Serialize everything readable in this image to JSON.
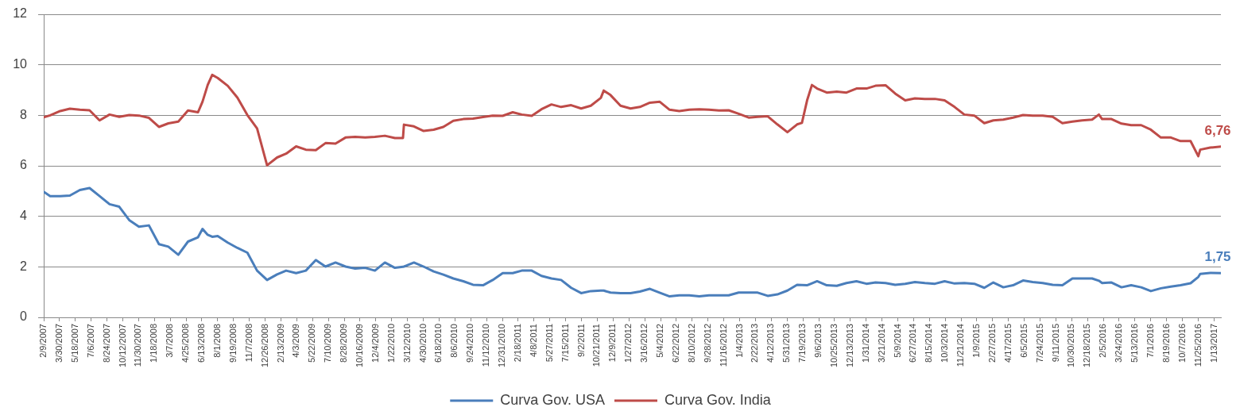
{
  "chart_data": {
    "type": "line",
    "x": [
      "2007-02-09",
      "2007-03-01",
      "2007-04-01",
      "2007-05-01",
      "2007-06-01",
      "2007-07-01",
      "2007-08-01",
      "2007-09-01",
      "2007-10-01",
      "2007-11-01",
      "2007-12-01",
      "2008-01-01",
      "2008-02-01",
      "2008-03-01",
      "2008-04-01",
      "2008-05-01",
      "2008-06-01",
      "2008-06-15",
      "2008-07-01",
      "2008-07-15",
      "2008-08-01",
      "2008-09-01",
      "2008-10-01",
      "2008-11-01",
      "2008-12-01",
      "2009-01-01",
      "2009-02-01",
      "2009-03-01",
      "2009-04-01",
      "2009-05-01",
      "2009-06-01",
      "2009-07-01",
      "2009-08-01",
      "2009-09-01",
      "2009-10-01",
      "2009-11-01",
      "2009-12-01",
      "2010-01-01",
      "2010-02-01",
      "2010-02-26",
      "2010-03-01",
      "2010-04-01",
      "2010-05-01",
      "2010-06-01",
      "2010-07-01",
      "2010-08-01",
      "2010-09-01",
      "2010-10-01",
      "2010-11-01",
      "2010-12-01",
      "2011-01-01",
      "2011-02-01",
      "2011-03-01",
      "2011-04-01",
      "2011-05-01",
      "2011-06-01",
      "2011-07-01",
      "2011-08-01",
      "2011-09-01",
      "2011-10-01",
      "2011-11-01",
      "2011-11-10",
      "2011-12-01",
      "2012-01-01",
      "2012-02-01",
      "2012-03-01",
      "2012-04-01",
      "2012-05-01",
      "2012-06-01",
      "2012-07-01",
      "2012-08-01",
      "2012-09-01",
      "2012-10-01",
      "2012-11-01",
      "2012-12-01",
      "2013-01-01",
      "2013-02-01",
      "2013-03-01",
      "2013-04-01",
      "2013-05-01",
      "2013-06-01",
      "2013-07-01",
      "2013-07-16",
      "2013-08-01",
      "2013-08-16",
      "2013-09-01",
      "2013-10-01",
      "2013-11-01",
      "2013-12-01",
      "2014-01-01",
      "2014-02-01",
      "2014-03-01",
      "2014-04-01",
      "2014-05-01",
      "2014-06-01",
      "2014-07-01",
      "2014-08-01",
      "2014-09-01",
      "2014-10-01",
      "2014-11-01",
      "2014-12-01",
      "2015-01-01",
      "2015-02-01",
      "2015-03-01",
      "2015-04-01",
      "2015-05-01",
      "2015-06-01",
      "2015-07-01",
      "2015-08-01",
      "2015-09-01",
      "2015-10-01",
      "2015-11-01",
      "2015-12-01",
      "2016-01-01",
      "2016-01-22",
      "2016-02-01",
      "2016-03-01",
      "2016-04-01",
      "2016-05-01",
      "2016-06-01",
      "2016-07-01",
      "2016-08-01",
      "2016-09-01",
      "2016-10-01",
      "2016-11-01",
      "2016-11-25",
      "2016-12-01",
      "2017-01-01",
      "2017-02-03"
    ],
    "series": [
      {
        "name": "Curva Gov. USA",
        "color": "#4a7ebb",
        "values": [
          4.97,
          4.8,
          4.8,
          4.82,
          5.04,
          5.12,
          4.8,
          4.48,
          4.38,
          3.85,
          3.59,
          3.64,
          2.9,
          2.8,
          2.48,
          3.0,
          3.17,
          3.5,
          3.27,
          3.19,
          3.22,
          2.96,
          2.75,
          2.56,
          1.85,
          1.48,
          1.7,
          1.85,
          1.75,
          1.85,
          2.27,
          2.01,
          2.17,
          2.01,
          1.93,
          1.96,
          1.85,
          2.17,
          1.96,
          2.0,
          2.01,
          2.17,
          2.01,
          1.82,
          1.69,
          1.54,
          1.43,
          1.29,
          1.27,
          1.48,
          1.75,
          1.75,
          1.85,
          1.85,
          1.64,
          1.54,
          1.48,
          1.17,
          0.96,
          1.04,
          1.06,
          1.06,
          0.98,
          0.96,
          0.96,
          1.02,
          1.13,
          0.98,
          0.83,
          0.87,
          0.87,
          0.83,
          0.87,
          0.87,
          0.87,
          0.98,
          0.98,
          0.98,
          0.85,
          0.91,
          1.06,
          1.29,
          1.28,
          1.27,
          1.35,
          1.43,
          1.27,
          1.25,
          1.36,
          1.43,
          1.33,
          1.38,
          1.36,
          1.29,
          1.33,
          1.4,
          1.36,
          1.33,
          1.43,
          1.34,
          1.36,
          1.33,
          1.17,
          1.38,
          1.19,
          1.27,
          1.46,
          1.4,
          1.36,
          1.29,
          1.27,
          1.54,
          1.54,
          1.54,
          1.45,
          1.36,
          1.38,
          1.19,
          1.27,
          1.19,
          1.04,
          1.15,
          1.22,
          1.27,
          1.35,
          1.6,
          1.72,
          1.76,
          1.75
        ],
        "value_labels": [
          null,
          null,
          null,
          null,
          null,
          null,
          null,
          null,
          null,
          null,
          null,
          null,
          null,
          null,
          null,
          null,
          null,
          null,
          null,
          null,
          null,
          null,
          null,
          null,
          null,
          null,
          null,
          null,
          null,
          null,
          null,
          null,
          null,
          null,
          null,
          null,
          null,
          null,
          null,
          null,
          null,
          null,
          null,
          null,
          null,
          null,
          null,
          null,
          null,
          null,
          null,
          null,
          null,
          null,
          null,
          null,
          null,
          null,
          null,
          null,
          null,
          null,
          null,
          null,
          null,
          null,
          null,
          null,
          null,
          null,
          null,
          null,
          null,
          null,
          null,
          null,
          null,
          null,
          null,
          null,
          null,
          null,
          null,
          null,
          null,
          null,
          null,
          null,
          null,
          null,
          null,
          null,
          null,
          null,
          null,
          null,
          null,
          null,
          null,
          null,
          null,
          null,
          null,
          null,
          null,
          null,
          null,
          null,
          null,
          null,
          null,
          null,
          null,
          null,
          null,
          null,
          null,
          null,
          null,
          null,
          null,
          null,
          null,
          null,
          null,
          null,
          null,
          null,
          "1,75"
        ]
      },
      {
        "name": "Curva Gov. India",
        "color": "#be4b48",
        "values": [
          7.92,
          8.0,
          8.17,
          8.26,
          8.22,
          8.2,
          7.8,
          8.03,
          7.94,
          8.01,
          7.99,
          7.9,
          7.54,
          7.68,
          7.75,
          8.19,
          8.12,
          8.54,
          9.2,
          9.6,
          9.48,
          9.17,
          8.7,
          8.01,
          7.48,
          6.02,
          6.33,
          6.48,
          6.77,
          6.64,
          6.62,
          6.9,
          6.88,
          7.12,
          7.15,
          7.12,
          7.15,
          7.19,
          7.1,
          7.1,
          7.63,
          7.56,
          7.38,
          7.43,
          7.54,
          7.78,
          7.85,
          7.87,
          7.93,
          7.99,
          7.98,
          8.12,
          8.03,
          7.98,
          8.24,
          8.43,
          8.33,
          8.4,
          8.27,
          8.38,
          8.69,
          8.98,
          8.8,
          8.38,
          8.27,
          8.33,
          8.5,
          8.54,
          8.22,
          8.17,
          8.22,
          8.24,
          8.22,
          8.19,
          8.2,
          8.06,
          7.91,
          7.94,
          7.96,
          7.64,
          7.33,
          7.64,
          7.7,
          8.59,
          9.2,
          9.06,
          8.9,
          8.94,
          8.9,
          9.06,
          9.06,
          9.17,
          9.19,
          8.86,
          8.59,
          8.67,
          8.65,
          8.65,
          8.59,
          8.33,
          8.03,
          7.99,
          7.69,
          7.8,
          7.83,
          7.91,
          8.01,
          7.99,
          7.99,
          7.94,
          7.69,
          7.75,
          7.8,
          7.83,
          8.03,
          7.85,
          7.85,
          7.67,
          7.61,
          7.61,
          7.43,
          7.12,
          7.12,
          6.98,
          6.98,
          6.38,
          6.64,
          6.72,
          6.76
        ],
        "value_labels": [
          null,
          null,
          null,
          null,
          null,
          null,
          null,
          null,
          null,
          null,
          null,
          null,
          null,
          null,
          null,
          null,
          null,
          null,
          null,
          null,
          null,
          null,
          null,
          null,
          null,
          null,
          null,
          null,
          null,
          null,
          null,
          null,
          null,
          null,
          null,
          null,
          null,
          null,
          null,
          null,
          null,
          null,
          null,
          null,
          null,
          null,
          null,
          null,
          null,
          null,
          null,
          null,
          null,
          null,
          null,
          null,
          null,
          null,
          null,
          null,
          null,
          null,
          null,
          null,
          null,
          null,
          null,
          null,
          null,
          null,
          null,
          null,
          null,
          null,
          null,
          null,
          null,
          null,
          null,
          null,
          null,
          null,
          null,
          null,
          null,
          null,
          null,
          null,
          null,
          null,
          null,
          null,
          null,
          null,
          null,
          null,
          null,
          null,
          null,
          null,
          null,
          null,
          null,
          null,
          null,
          null,
          null,
          null,
          null,
          null,
          null,
          null,
          null,
          null,
          null,
          null,
          null,
          null,
          null,
          null,
          null,
          null,
          null,
          null,
          null,
          null,
          null,
          null,
          "6,76"
        ]
      }
    ],
    "xlim": [
      "2007-02-09",
      "2017-02-03"
    ],
    "xticks": [
      {
        "value": "2007-02-09",
        "label": "2/9/2007"
      },
      {
        "value": "2007-03-30",
        "label": "3/30/2007"
      },
      {
        "value": "2007-05-18",
        "label": "5/18/2007"
      },
      {
        "value": "2007-07-06",
        "label": "7/6/2007"
      },
      {
        "value": "2007-08-24",
        "label": "8/24/2007"
      },
      {
        "value": "2007-10-12",
        "label": "10/12/2007"
      },
      {
        "value": "2007-11-30",
        "label": "11/30/2007"
      },
      {
        "value": "2008-01-18",
        "label": "1/18/2008"
      },
      {
        "value": "2008-03-07",
        "label": "3/7/2008"
      },
      {
        "value": "2008-04-25",
        "label": "4/25/2008"
      },
      {
        "value": "2008-06-13",
        "label": "6/13/2008"
      },
      {
        "value": "2008-08-01",
        "label": "8/1/2008"
      },
      {
        "value": "2008-09-19",
        "label": "9/19/2008"
      },
      {
        "value": "2008-11-07",
        "label": "11/7/2008"
      },
      {
        "value": "2008-12-26",
        "label": "12/26/2008"
      },
      {
        "value": "2009-02-13",
        "label": "2/13/2009"
      },
      {
        "value": "2009-04-03",
        "label": "4/3/2009"
      },
      {
        "value": "2009-05-22",
        "label": "5/22/2009"
      },
      {
        "value": "2009-07-10",
        "label": "7/10/2009"
      },
      {
        "value": "2009-08-28",
        "label": "8/28/2009"
      },
      {
        "value": "2009-10-16",
        "label": "10/16/2009"
      },
      {
        "value": "2009-12-04",
        "label": "12/4/2009"
      },
      {
        "value": "2010-01-22",
        "label": "1/22/2010"
      },
      {
        "value": "2010-03-12",
        "label": "3/12/2010"
      },
      {
        "value": "2010-04-30",
        "label": "4/30/2010"
      },
      {
        "value": "2010-06-18",
        "label": "6/18/2010"
      },
      {
        "value": "2010-08-06",
        "label": "8/6/2010"
      },
      {
        "value": "2010-09-24",
        "label": "9/24/2010"
      },
      {
        "value": "2010-11-12",
        "label": "11/12/2010"
      },
      {
        "value": "2010-12-31",
        "label": "12/31/2010"
      },
      {
        "value": "2011-02-18",
        "label": "2/18/2011"
      },
      {
        "value": "2011-04-08",
        "label": "4/8/2011"
      },
      {
        "value": "2011-05-27",
        "label": "5/27/2011"
      },
      {
        "value": "2011-07-15",
        "label": "7/15/2011"
      },
      {
        "value": "2011-09-02",
        "label": "9/2/2011"
      },
      {
        "value": "2011-10-21",
        "label": "10/21/2011"
      },
      {
        "value": "2011-12-09",
        "label": "12/9/2011"
      },
      {
        "value": "2012-01-27",
        "label": "1/27/2012"
      },
      {
        "value": "2012-03-16",
        "label": "3/16/2012"
      },
      {
        "value": "2012-05-04",
        "label": "5/4/2012"
      },
      {
        "value": "2012-06-22",
        "label": "6/22/2012"
      },
      {
        "value": "2012-08-10",
        "label": "8/10/2012"
      },
      {
        "value": "2012-09-28",
        "label": "9/28/2012"
      },
      {
        "value": "2012-11-16",
        "label": "11/16/2012"
      },
      {
        "value": "2013-01-04",
        "label": "1/4/2013"
      },
      {
        "value": "2013-02-22",
        "label": "2/22/2013"
      },
      {
        "value": "2013-04-12",
        "label": "4/12/2013"
      },
      {
        "value": "2013-05-31",
        "label": "5/31/2013"
      },
      {
        "value": "2013-07-19",
        "label": "7/19/2013"
      },
      {
        "value": "2013-09-06",
        "label": "9/6/2013"
      },
      {
        "value": "2013-10-25",
        "label": "10/25/2013"
      },
      {
        "value": "2013-12-13",
        "label": "12/13/2013"
      },
      {
        "value": "2014-01-31",
        "label": "1/31/2014"
      },
      {
        "value": "2014-03-21",
        "label": "3/21/2014"
      },
      {
        "value": "2014-05-09",
        "label": "5/9/2014"
      },
      {
        "value": "2014-06-27",
        "label": "6/27/2014"
      },
      {
        "value": "2014-08-15",
        "label": "8/15/2014"
      },
      {
        "value": "2014-10-03",
        "label": "10/3/2014"
      },
      {
        "value": "2014-11-21",
        "label": "11/21/2014"
      },
      {
        "value": "2015-01-09",
        "label": "1/9/2015"
      },
      {
        "value": "2015-02-27",
        "label": "2/27/2015"
      },
      {
        "value": "2015-04-17",
        "label": "4/17/2015"
      },
      {
        "value": "2015-06-05",
        "label": "6/5/2015"
      },
      {
        "value": "2015-07-24",
        "label": "7/24/2015"
      },
      {
        "value": "2015-09-11",
        "label": "9/11/2015"
      },
      {
        "value": "2015-10-30",
        "label": "10/30/2015"
      },
      {
        "value": "2015-12-18",
        "label": "12/18/2015"
      },
      {
        "value": "2016-02-05",
        "label": "2/5/2016"
      },
      {
        "value": "2016-03-24",
        "label": "3/24/2016"
      },
      {
        "value": "2016-05-13",
        "label": "5/13/2016"
      },
      {
        "value": "2016-07-01",
        "label": "7/1/2016"
      },
      {
        "value": "2016-08-19",
        "label": "8/19/2016"
      },
      {
        "value": "2016-10-07",
        "label": "10/7/2016"
      },
      {
        "value": "2016-11-25",
        "label": "11/25/2016"
      },
      {
        "value": "2017-01-13",
        "label": "1/13/2017"
      }
    ],
    "ylim": [
      0,
      12
    ],
    "yticks": [
      0,
      2,
      4,
      6,
      8,
      10,
      12
    ],
    "grid": "y",
    "legend": "bottom",
    "marker": "none"
  }
}
